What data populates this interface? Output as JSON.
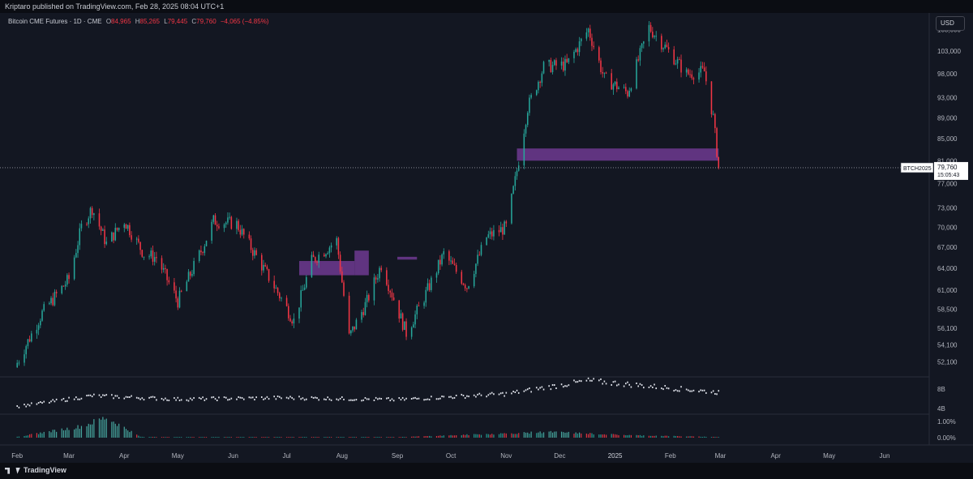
{
  "header": {
    "published_line": "Kriptaro published on TradingView.com, Feb 28, 2025 08:04 UTC+1"
  },
  "legend": {
    "title": "Bitcoin CME Futures · 1D · CME",
    "open_label": "O",
    "open": "84,965",
    "high_label": "H",
    "high": "85,265",
    "low_label": "L",
    "low": "79,445",
    "close_label": "C",
    "close": "79,760",
    "change": "−4,065 (−4.85%)"
  },
  "currency_button": "USD",
  "price_tag": {
    "symbol": "BTCH2025",
    "price": "79,760",
    "countdown": "15:05:43"
  },
  "footer": {
    "logo_text": "TradingView"
  },
  "colors": {
    "up": "#26a69a",
    "down": "#f23645",
    "zone": "#7b3fa0",
    "background": "#131722"
  },
  "chart_data": [
    {
      "type": "candlestick",
      "title": "Bitcoin CME Futures · 1D · CME",
      "y_tick_labels": [
        "108,000",
        "103,000",
        "98,000",
        "93,000",
        "89,000",
        "85,000",
        "81,000",
        "77,000",
        "73,000",
        "70,000",
        "67,000",
        "64,000",
        "61,000",
        "58,500",
        "56,100",
        "54,100",
        "52,100"
      ],
      "x_tick_labels": [
        "Feb",
        "Mar",
        "Apr",
        "May",
        "Jun",
        "Jul",
        "Aug",
        "Sep",
        "Oct",
        "Nov",
        "Dec",
        "2025",
        "Feb",
        "Mar",
        "Apr",
        "May",
        "Jun"
      ],
      "last_price": 79760,
      "y_scale": "log",
      "ylim": [
        50500,
        112000
      ],
      "x": [
        "2024-02-01",
        "2024-02-15",
        "2024-03-01",
        "2024-03-08",
        "2024-03-14",
        "2024-03-22",
        "2024-04-01",
        "2024-04-12",
        "2024-04-19",
        "2024-05-01",
        "2024-05-15",
        "2024-05-21",
        "2024-06-03",
        "2024-06-12",
        "2024-06-24",
        "2024-07-05",
        "2024-07-15",
        "2024-07-29",
        "2024-08-05",
        "2024-08-15",
        "2024-08-23",
        "2024-09-06",
        "2024-09-16",
        "2024-09-27",
        "2024-10-10",
        "2024-10-21",
        "2024-11-01",
        "2024-11-06",
        "2024-11-13",
        "2024-11-22",
        "2024-12-05",
        "2024-12-17",
        "2024-12-26",
        "2025-01-08",
        "2025-01-20",
        "2025-01-31",
        "2025-02-10",
        "2025-02-20",
        "2025-02-25",
        "2025-02-28"
      ],
      "close": [
        52000,
        58000,
        62500,
        70000,
        73000,
        67500,
        71000,
        66000,
        65500,
        59500,
        67000,
        71000,
        70500,
        66500,
        61500,
        57000,
        65000,
        68000,
        55000,
        59500,
        64500,
        55500,
        60000,
        66000,
        61500,
        68500,
        70000,
        77500,
        91000,
        99500,
        100000,
        108000,
        97000,
        94000,
        108500,
        103000,
        98000,
        98500,
        89000,
        79760
      ],
      "zones": [
        {
          "start": "2024-07-08",
          "end": "2024-08-08",
          "low": 63000,
          "high": 65000
        },
        {
          "start": "2024-08-08",
          "end": "2024-08-16",
          "low": 63000,
          "high": 66500
        },
        {
          "start": "2024-09-01",
          "end": "2024-09-12",
          "low": 65200,
          "high": 65600
        },
        {
          "start": "2024-11-07",
          "end": "2025-02-28",
          "low": 81000,
          "high": 83200
        }
      ]
    },
    {
      "type": "bar",
      "y_tick_labels": [
        "8B",
        "4B"
      ],
      "x": [
        "2024-02-01",
        "2024-03-14",
        "2024-05-01",
        "2024-07-01",
        "2024-09-01",
        "2024-11-01",
        "2024-12-17",
        "2025-02-01",
        "2025-02-28"
      ],
      "values": [
        4.4,
        6.6,
        5.9,
        6.2,
        5.8,
        7.0,
        9.7,
        8.2,
        7.3
      ]
    },
    {
      "type": "bar",
      "y_tick_labels": [
        "1.00%",
        "0.00%"
      ],
      "x": [
        "2024-02-01",
        "2024-03-08",
        "2024-03-22",
        "2024-04-10",
        "2024-05-15",
        "2024-09-01",
        "2024-11-25",
        "2025-01-10",
        "2025-02-28"
      ],
      "values": [
        0.05,
        0.7,
        1.25,
        0.05,
        0.02,
        0.03,
        0.35,
        0.15,
        0.04
      ]
    }
  ]
}
